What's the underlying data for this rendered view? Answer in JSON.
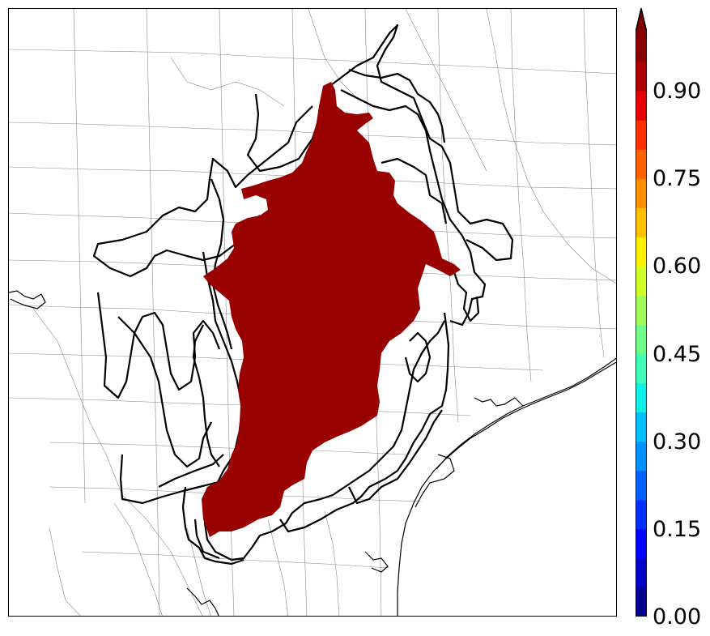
{
  "colorbar": {
    "min": 0.0,
    "max": 1.0,
    "extend": "max",
    "tick_labels": [
      "0.00",
      "0.15",
      "0.30",
      "0.45",
      "0.60",
      "0.75",
      "0.90"
    ],
    "levels": 20,
    "colors": [
      "#00008f",
      "#0000c8",
      "#0000ff",
      "#0030ff",
      "#0060ff",
      "#0090ff",
      "#00c0ff",
      "#10f0e8",
      "#40ffb8",
      "#70ff88",
      "#a0ff58",
      "#d0ff28",
      "#fff000",
      "#ffc000",
      "#ff9000",
      "#ff6000",
      "#ff3000",
      "#e80000",
      "#b00000",
      "#8b0000"
    ],
    "extend_color": "#800000"
  },
  "map": {
    "fill_color": "#990000",
    "contour_color": "#000000",
    "county_line_color": "#8a8a8a",
    "coast_color": "#000000"
  }
}
